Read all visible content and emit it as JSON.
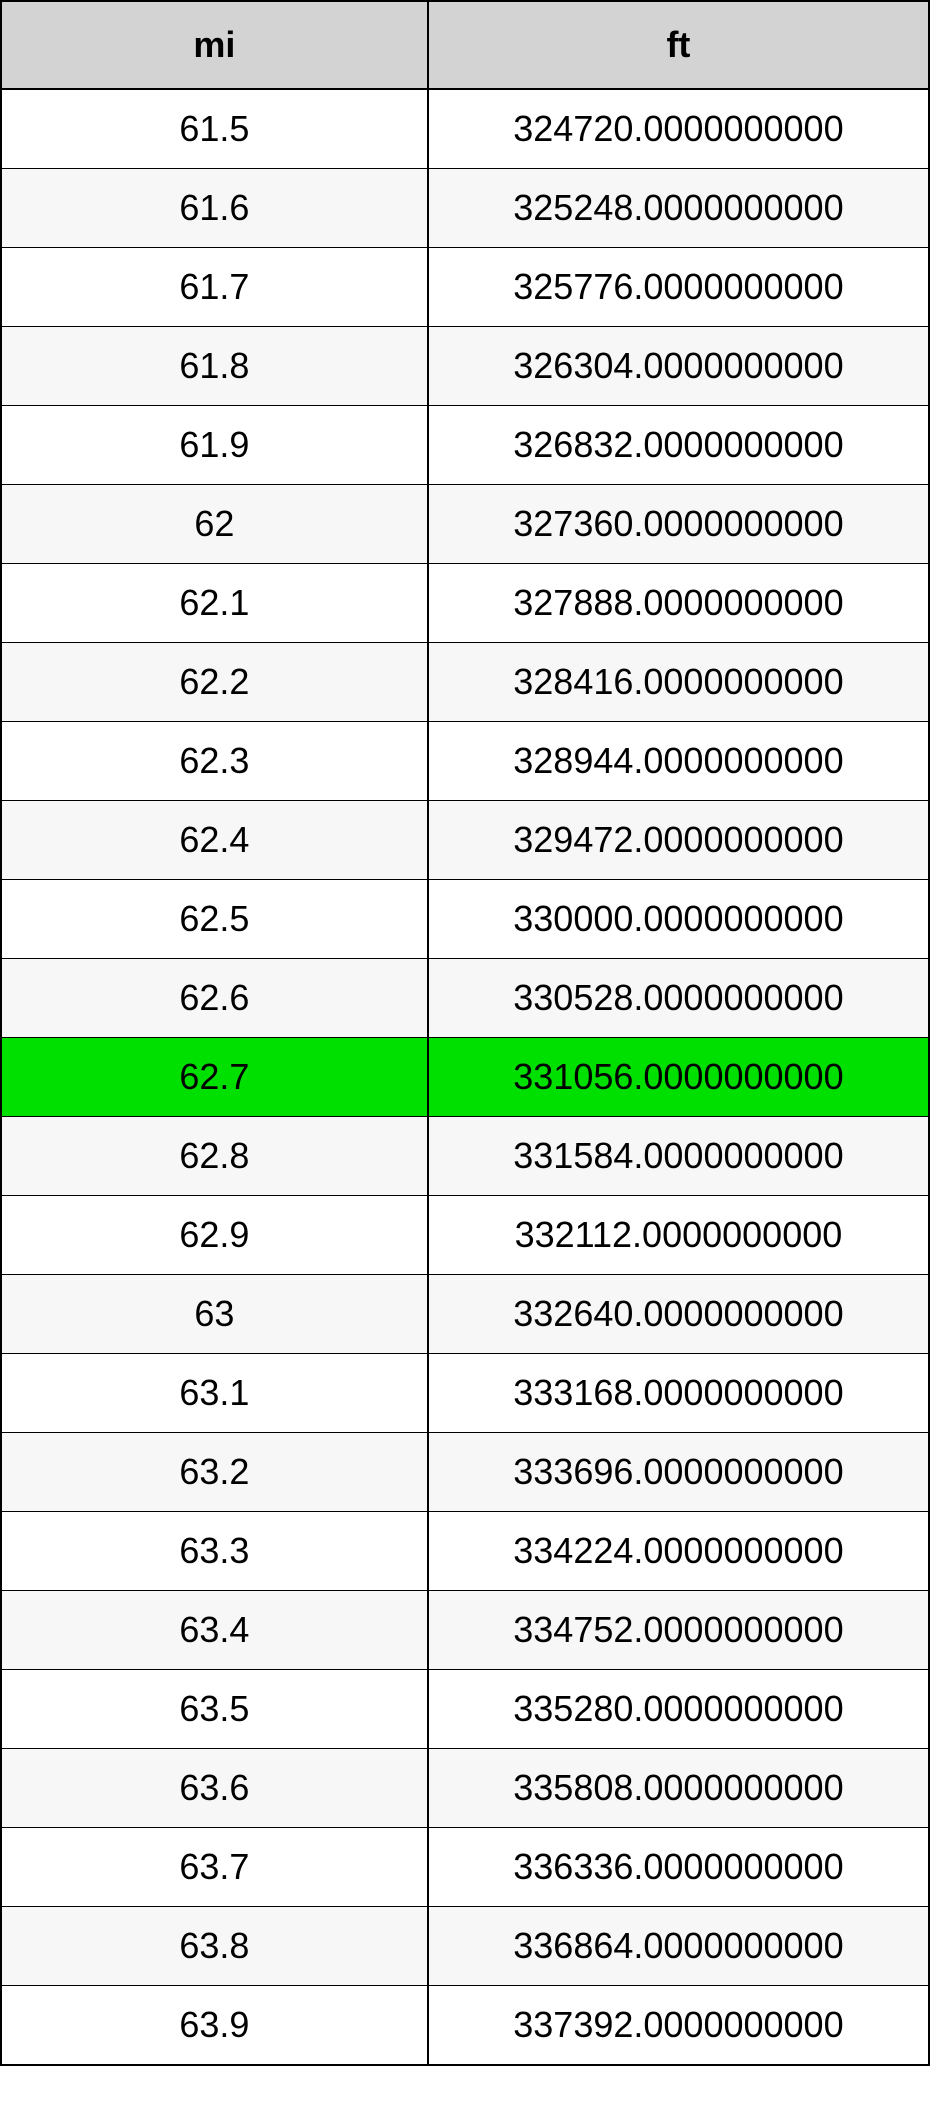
{
  "table": {
    "type": "table",
    "columns": [
      {
        "key": "mi",
        "label": "mi",
        "width_pct": 46,
        "align": "center"
      },
      {
        "key": "ft",
        "label": "ft",
        "width_pct": 54,
        "align": "center"
      }
    ],
    "header_bg": "#d3d3d3",
    "header_fontsize": 36,
    "header_fontweight": "bold",
    "cell_fontsize": 36,
    "border_color": "#000000",
    "row_bg_odd": "#ffffff",
    "row_bg_even": "#f7f7f7",
    "highlight_bg": "#00e000",
    "highlight_index": 12,
    "rows": [
      {
        "mi": "61.5",
        "ft": "324720.0000000000"
      },
      {
        "mi": "61.6",
        "ft": "325248.0000000000"
      },
      {
        "mi": "61.7",
        "ft": "325776.0000000000"
      },
      {
        "mi": "61.8",
        "ft": "326304.0000000000"
      },
      {
        "mi": "61.9",
        "ft": "326832.0000000000"
      },
      {
        "mi": "62",
        "ft": "327360.0000000000"
      },
      {
        "mi": "62.1",
        "ft": "327888.0000000000"
      },
      {
        "mi": "62.2",
        "ft": "328416.0000000000"
      },
      {
        "mi": "62.3",
        "ft": "328944.0000000000"
      },
      {
        "mi": "62.4",
        "ft": "329472.0000000000"
      },
      {
        "mi": "62.5",
        "ft": "330000.0000000000"
      },
      {
        "mi": "62.6",
        "ft": "330528.0000000000"
      },
      {
        "mi": "62.7",
        "ft": "331056.0000000000"
      },
      {
        "mi": "62.8",
        "ft": "331584.0000000000"
      },
      {
        "mi": "62.9",
        "ft": "332112.0000000000"
      },
      {
        "mi": "63",
        "ft": "332640.0000000000"
      },
      {
        "mi": "63.1",
        "ft": "333168.0000000000"
      },
      {
        "mi": "63.2",
        "ft": "333696.0000000000"
      },
      {
        "mi": "63.3",
        "ft": "334224.0000000000"
      },
      {
        "mi": "63.4",
        "ft": "334752.0000000000"
      },
      {
        "mi": "63.5",
        "ft": "335280.0000000000"
      },
      {
        "mi": "63.6",
        "ft": "335808.0000000000"
      },
      {
        "mi": "63.7",
        "ft": "336336.0000000000"
      },
      {
        "mi": "63.8",
        "ft": "336864.0000000000"
      },
      {
        "mi": "63.9",
        "ft": "337392.0000000000"
      }
    ]
  }
}
